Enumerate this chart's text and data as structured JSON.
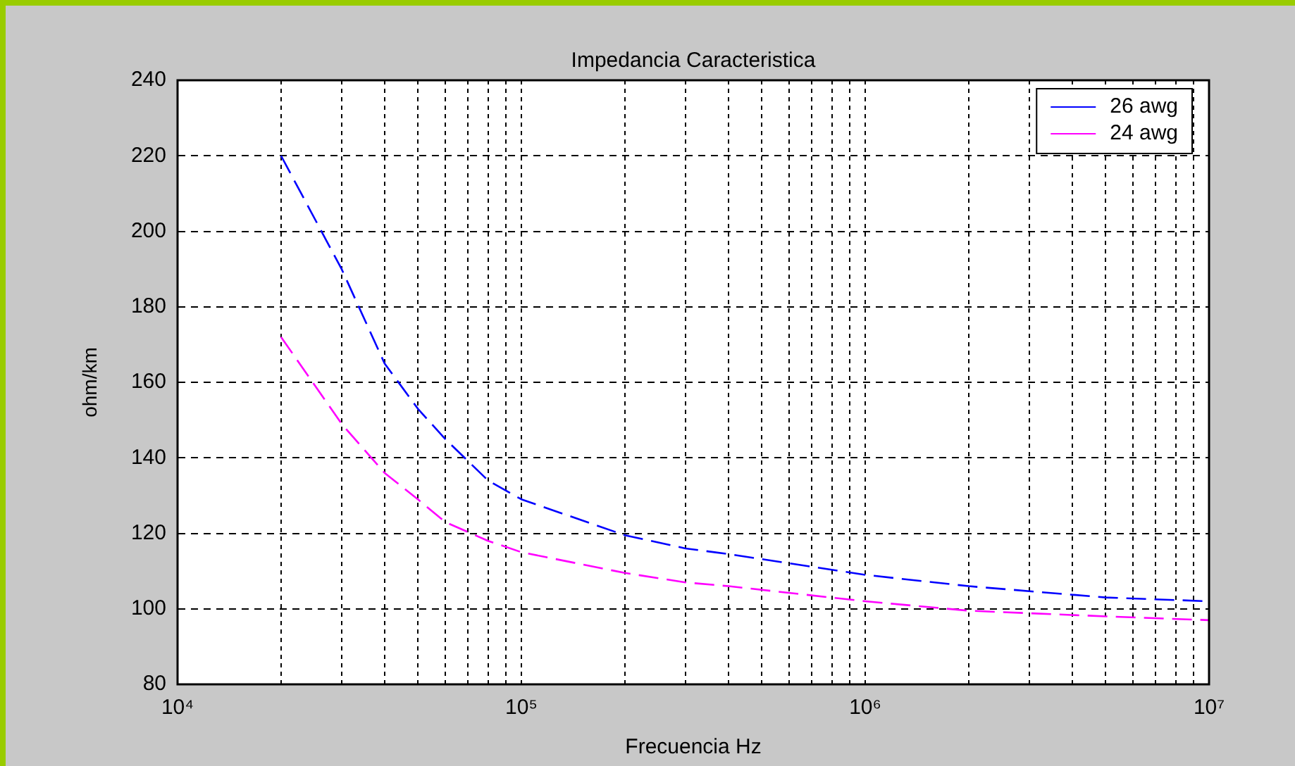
{
  "chart_data": {
    "type": "line",
    "title": "Impedancia Caracteristica",
    "xlabel": "Frecuencia Hz",
    "ylabel": "ohm/km",
    "log": "x",
    "xlim": [
      10000,
      10000000
    ],
    "xticks": [
      {
        "value": 10000,
        "label": "10⁴"
      },
      {
        "value": 20000,
        "label": null
      },
      {
        "value": 30000,
        "label": null
      },
      {
        "value": 40000,
        "label": null
      },
      {
        "value": 50000,
        "label": null
      },
      {
        "value": 60000,
        "label": null
      },
      {
        "value": 70000,
        "label": null
      },
      {
        "value": 80000,
        "label": null
      },
      {
        "value": 90000,
        "label": null
      },
      {
        "value": 100000,
        "label": "10⁵"
      },
      {
        "value": 200000,
        "label": null
      },
      {
        "value": 300000,
        "label": null
      },
      {
        "value": 400000,
        "label": null
      },
      {
        "value": 500000,
        "label": null
      },
      {
        "value": 600000,
        "label": null
      },
      {
        "value": 700000,
        "label": null
      },
      {
        "value": 800000,
        "label": null
      },
      {
        "value": 900000,
        "label": null
      },
      {
        "value": 1000000,
        "label": "10⁶"
      },
      {
        "value": 2000000,
        "label": null
      },
      {
        "value": 3000000,
        "label": null
      },
      {
        "value": 4000000,
        "label": null
      },
      {
        "value": 5000000,
        "label": null
      },
      {
        "value": 6000000,
        "label": null
      },
      {
        "value": 7000000,
        "label": null
      },
      {
        "value": 8000000,
        "label": null
      },
      {
        "value": 9000000,
        "label": null
      },
      {
        "value": 10000000,
        "label": "10⁷"
      }
    ],
    "ylim": [
      80,
      240
    ],
    "yticks": [
      80,
      100,
      120,
      140,
      160,
      180,
      200,
      220,
      240
    ],
    "grid": true,
    "legend": "top right",
    "line_style": "dashed",
    "marker": "none",
    "x": [
      20000,
      30000,
      40000,
      50000,
      60000,
      80000,
      100000,
      200000,
      300000,
      400000,
      1000000,
      2000000,
      5000000,
      10000000
    ],
    "series": [
      {
        "name": "26 awg",
        "color": "#0000ff",
        "values": [
          220,
          190,
          165,
          153,
          145,
          134,
          129,
          119.5,
          116,
          114.5,
          109,
          106,
          103,
          102
        ]
      },
      {
        "name": "24 awg",
        "color": "#ff00ff",
        "values": [
          172,
          149,
          136,
          129,
          123,
          118,
          115,
          109.5,
          107,
          106,
          102,
          99.5,
          98,
          97
        ]
      }
    ]
  }
}
